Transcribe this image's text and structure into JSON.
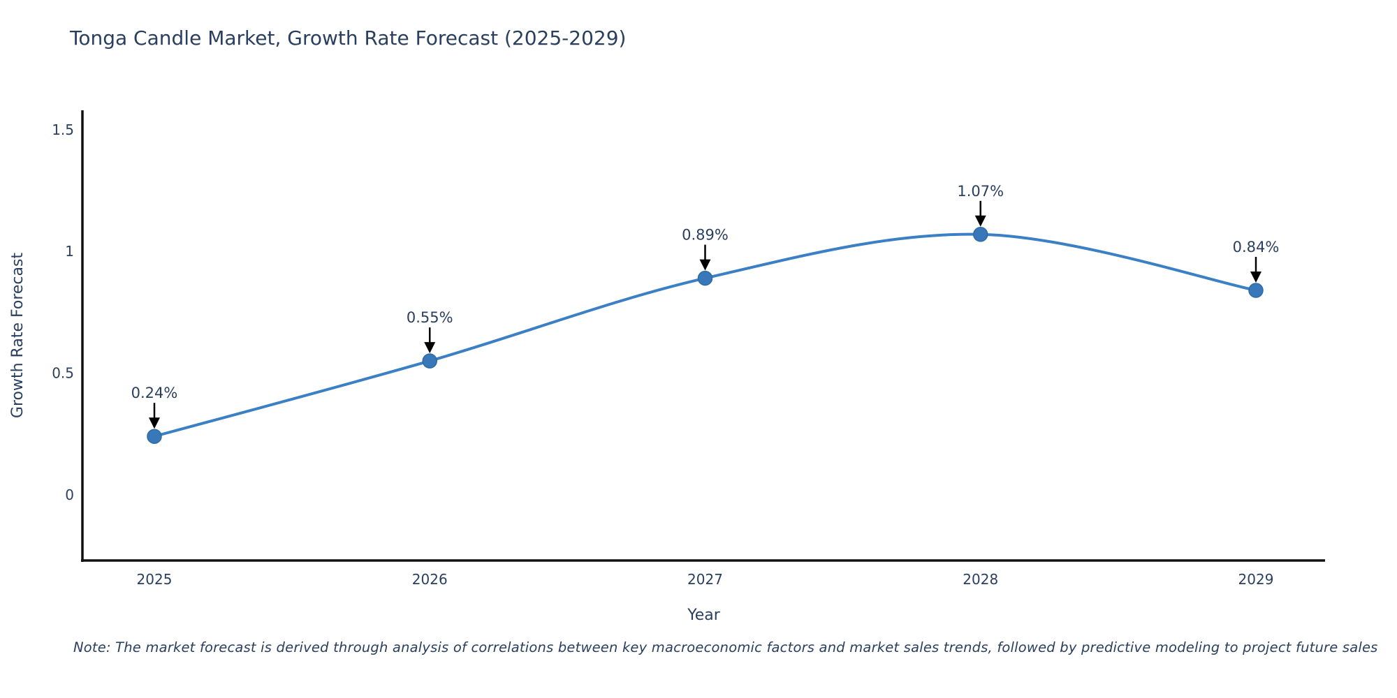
{
  "chart_data": {
    "type": "line",
    "title": "Tonga Candle Market, Growth Rate Forecast (2025-2029)",
    "xlabel": "Year",
    "ylabel": "Growth Rate Forecast",
    "x": [
      2025,
      2026,
      2027,
      2028,
      2029
    ],
    "series": [
      {
        "name": "Growth Rate Forecast",
        "values": [
          0.24,
          0.55,
          0.89,
          1.07,
          0.84
        ],
        "point_labels": [
          "0.24%",
          "0.55%",
          "0.89%",
          "1.07%",
          "0.84%"
        ]
      }
    ],
    "xtick_labels": [
      "2025",
      "2026",
      "2027",
      "2028",
      "2029"
    ],
    "yticks": [
      0,
      0.5,
      1,
      1.5
    ],
    "ytick_labels": [
      "0",
      "0.5",
      "1",
      "1.5"
    ],
    "ylim": [
      -0.27,
      1.58
    ],
    "xlim": [
      2024.74,
      2029.25
    ],
    "grid": false,
    "legend_position": "none",
    "line_shape": "spline",
    "colors": {
      "line": "#3b7fc4",
      "marker": "#3878b8",
      "marker_edge": "#2f6aa5",
      "annotation_arrow": "#000000",
      "text": "#2a3f5f",
      "axis_line": "#111111"
    }
  },
  "note": "Note: The market forecast is derived through analysis of correlations between key macroeconomic factors and market sales trends, followed by predictive modeling to project future sales"
}
